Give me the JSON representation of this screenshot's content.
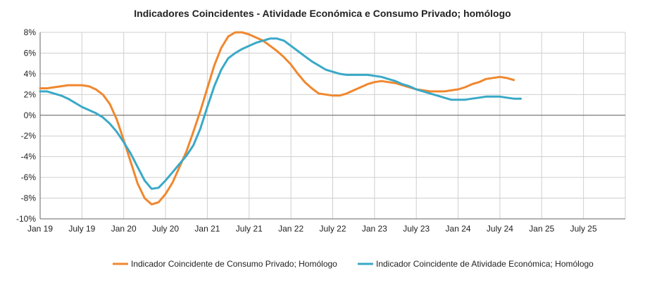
{
  "chart_data": {
    "type": "line",
    "title": "Indicadores Coincidentes  - Atividade Económica e Consumo Privado; homólogo",
    "xlabel": "",
    "ylabel": "",
    "ylim": [
      -10,
      8
    ],
    "y_ticks": [
      "8%",
      "6%",
      "4%",
      "2%",
      "0%",
      "-2%",
      "-4%",
      "-6%",
      "-8%",
      "-10%"
    ],
    "x_ticks": [
      "Jan 19",
      "July 19",
      "Jan 20",
      "July 20",
      "Jan 21",
      "July 21",
      "Jan 22",
      "July 22",
      "Jan 23",
      "July 23",
      "Jan 24",
      "July 24",
      "Jan 25",
      "July 25"
    ],
    "grid": true,
    "legend_position": "bottom",
    "series": [
      {
        "name": "Indicador Coincidente de Consumo Privado; Homólogo",
        "color": "#F0872E",
        "values": [
          2.6,
          2.6,
          2.7,
          2.8,
          2.9,
          2.9,
          2.9,
          2.8,
          2.5,
          2.0,
          1.1,
          -0.4,
          -2.4,
          -4.5,
          -6.6,
          -8.0,
          -8.6,
          -8.4,
          -7.6,
          -6.5,
          -5.0,
          -3.5,
          -1.6,
          0.4,
          2.6,
          4.8,
          6.5,
          7.6,
          8.0,
          8.0,
          7.8,
          7.5,
          7.2,
          6.7,
          6.2,
          5.6,
          4.9,
          4.0,
          3.2,
          2.6,
          2.1,
          2.0,
          1.9,
          1.9,
          2.1,
          2.4,
          2.7,
          3.0,
          3.2,
          3.3,
          3.2,
          3.1,
          2.9,
          2.7,
          2.5,
          2.4,
          2.3,
          2.3,
          2.3,
          2.4,
          2.5,
          2.7,
          3.0,
          3.2,
          3.5,
          3.6,
          3.7,
          3.6,
          3.4
        ]
      },
      {
        "name": "Indicador Coincidente de Atividade Económica; Homólogo",
        "color": "#3AA9C7",
        "values": [
          2.3,
          2.3,
          2.1,
          1.9,
          1.6,
          1.2,
          0.8,
          0.5,
          0.2,
          -0.2,
          -0.8,
          -1.6,
          -2.6,
          -3.7,
          -5.0,
          -6.3,
          -7.1,
          -7.0,
          -6.3,
          -5.5,
          -4.7,
          -3.9,
          -2.9,
          -1.3,
          0.8,
          2.8,
          4.4,
          5.5,
          6.0,
          6.4,
          6.7,
          7.0,
          7.2,
          7.4,
          7.4,
          7.2,
          6.7,
          6.2,
          5.7,
          5.2,
          4.8,
          4.4,
          4.2,
          4.0,
          3.9,
          3.9,
          3.9,
          3.9,
          3.8,
          3.7,
          3.5,
          3.3,
          3.0,
          2.8,
          2.5,
          2.3,
          2.1,
          1.9,
          1.7,
          1.5,
          1.5,
          1.5,
          1.6,
          1.7,
          1.8,
          1.8,
          1.8,
          1.7,
          1.6,
          1.6
        ]
      }
    ]
  }
}
